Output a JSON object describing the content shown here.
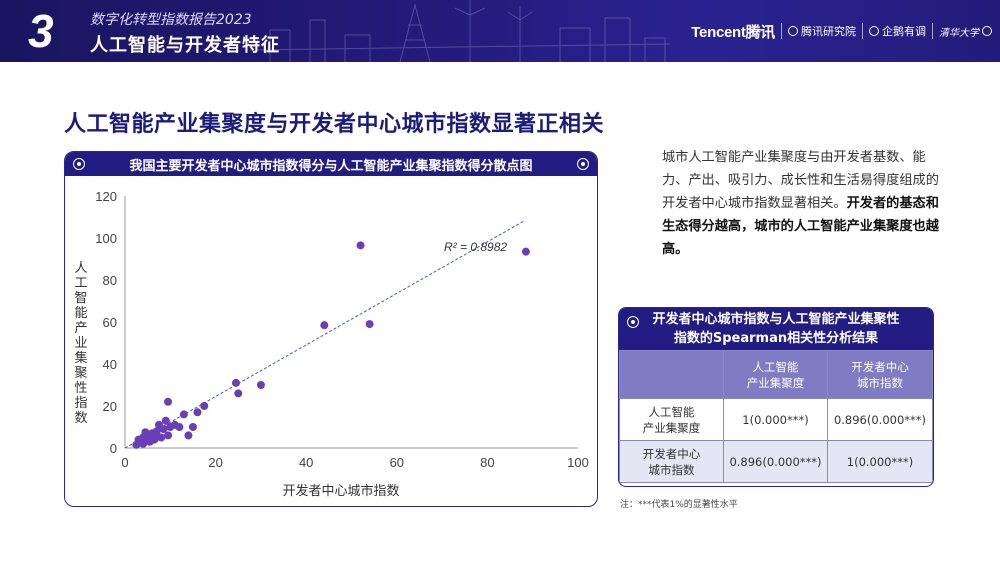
{
  "header": {
    "chapter_number": "3",
    "report_name": "数字化转型指数报告2023",
    "section_title": "人工智能与开发者特征",
    "logos": {
      "tencent": "Tencent腾讯",
      "research": "腾讯研究院",
      "qidian": "企鹅有调",
      "university": "清华大学"
    }
  },
  "headline": "人工智能产业集聚度与开发者中心城市指数显著正相关",
  "chart_panel": {
    "title": "我国主要开发者中心城市指数得分与人工智能产业集聚指数得分散点图"
  },
  "chart_data": {
    "type": "scatter",
    "xlabel": "开发者中心城市指数",
    "ylabel": "人工智能产业集聚性指数",
    "xlim": [
      0,
      100
    ],
    "ylim": [
      0,
      120
    ],
    "xticks": [
      0,
      20,
      40,
      60,
      80,
      100
    ],
    "yticks": [
      0,
      20,
      40,
      60,
      80,
      100,
      120
    ],
    "trendline": {
      "x": [
        0,
        88
      ],
      "y": [
        -1,
        108
      ],
      "style": "dashed",
      "color": "#3a5bd6"
    },
    "annotation": "R² = 0.8982",
    "point_color": "#6a3fb5",
    "grid": false,
    "points": [
      [
        2.5,
        1.5
      ],
      [
        3,
        3
      ],
      [
        3,
        4
      ],
      [
        4,
        2
      ],
      [
        4,
        5
      ],
      [
        4.5,
        7.5
      ],
      [
        5,
        4
      ],
      [
        5,
        6
      ],
      [
        5.5,
        3
      ],
      [
        6,
        5
      ],
      [
        6,
        7
      ],
      [
        6.5,
        4
      ],
      [
        7,
        6
      ],
      [
        7,
        8
      ],
      [
        7.5,
        11
      ],
      [
        8,
        5
      ],
      [
        8.5,
        9
      ],
      [
        9,
        13
      ],
      [
        9.5,
        6
      ],
      [
        10,
        10
      ],
      [
        9.5,
        22
      ],
      [
        11,
        11
      ],
      [
        12,
        10
      ],
      [
        13,
        16
      ],
      [
        14,
        6
      ],
      [
        15,
        10
      ],
      [
        16,
        17
      ],
      [
        17.5,
        20
      ],
      [
        24.5,
        31
      ],
      [
        25,
        26
      ],
      [
        30,
        30
      ],
      [
        44,
        58.5
      ],
      [
        52,
        96.5
      ],
      [
        54,
        59
      ],
      [
        88.5,
        93.5
      ]
    ]
  },
  "description": {
    "plain": "城市人工智能产业集聚度与由开发者基数、能力、产出、吸引力、成长性和生活易得度组成的开发者中心城市指数显著相关。",
    "bold": "开发者的基态和生态得分越高，城市的人工智能产业集聚度也越高。"
  },
  "correlation_table": {
    "title_line1": "开发者中心城市指数与人工智能产业集聚性",
    "title_line2": "指数的Spearman相关性分析结果",
    "columns": [
      "",
      "人工智能\n产业集聚度",
      "开发者中心\n城市指数"
    ],
    "rows": [
      {
        "label": "人工智能\n产业集聚度",
        "values": [
          "1(0.000***)",
          "0.896(0.000***)"
        ]
      },
      {
        "label": "开发者中心\n城市指数",
        "values": [
          "0.896(0.000***)",
          "1(0.000***)"
        ]
      }
    ],
    "note": "注：***代表1%的显著性水平"
  }
}
